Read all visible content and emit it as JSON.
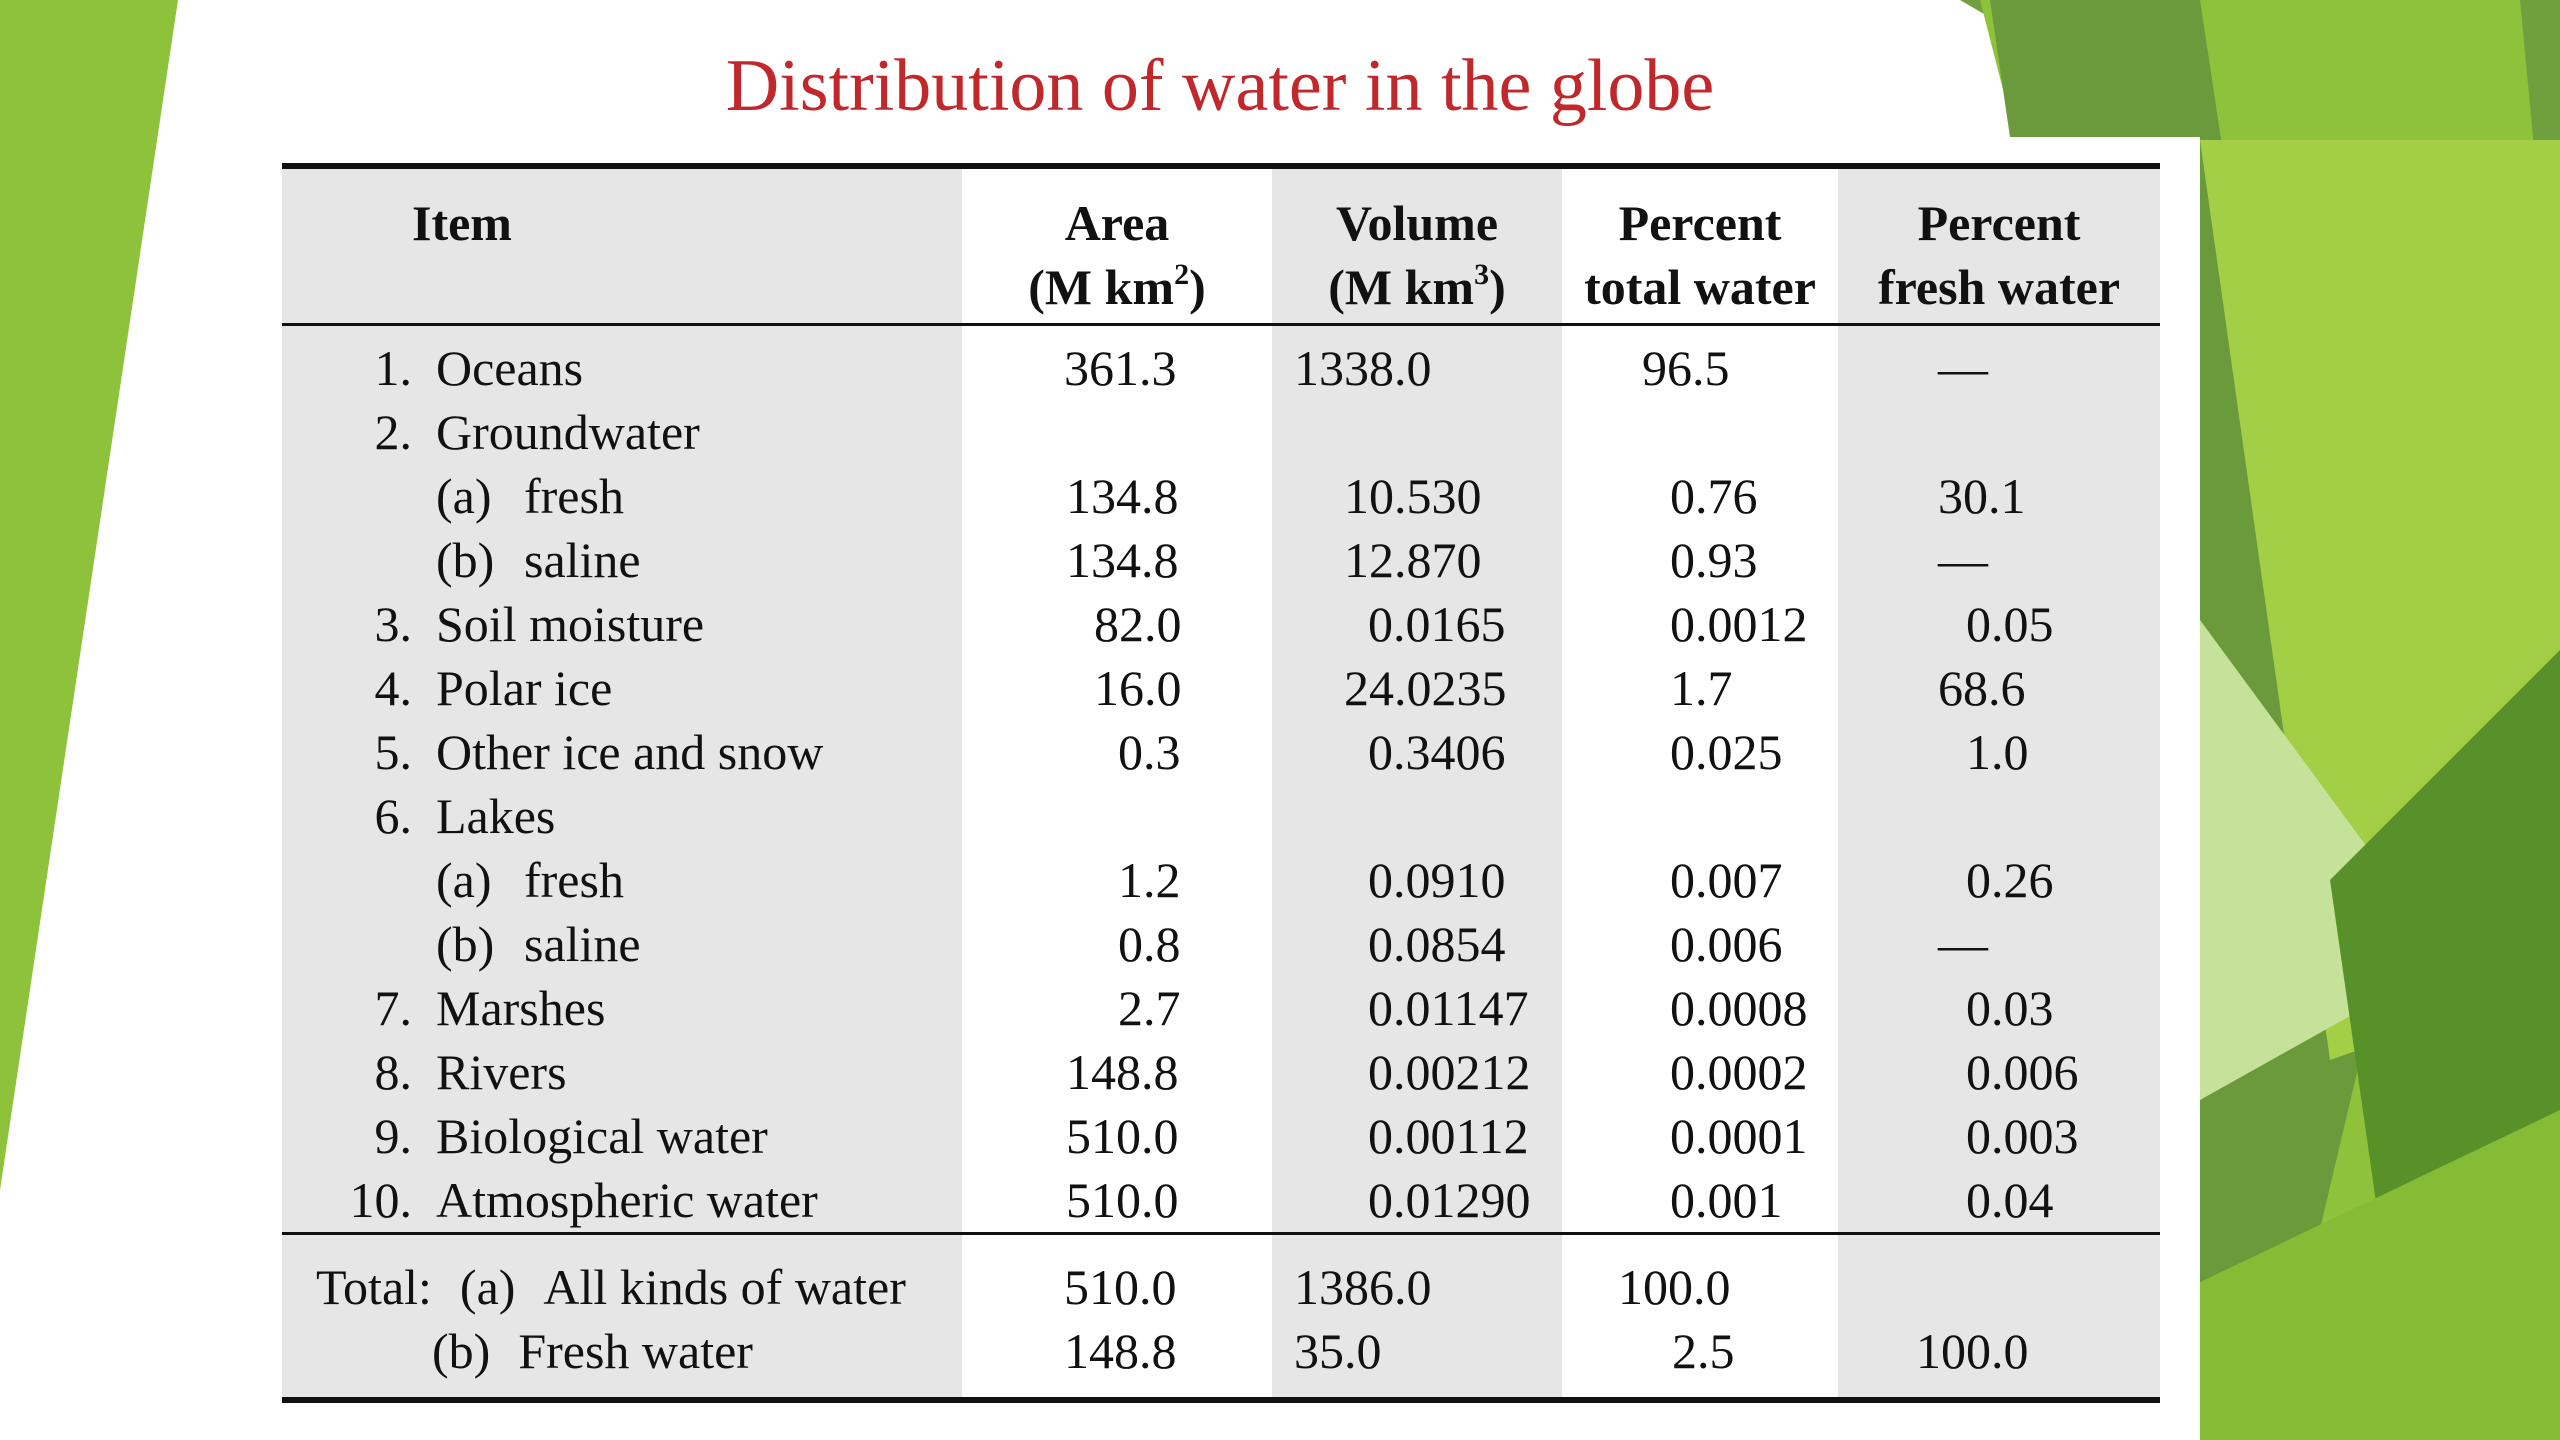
{
  "slide": {
    "title": "Distribution of water in the globe",
    "title_color": "#c0282b",
    "accent_colors": [
      "#7fb02c",
      "#a4cf3c",
      "#5f9e2f",
      "#c9e59a",
      "#4e8d22"
    ]
  },
  "table": {
    "headers": {
      "item": "Item",
      "area_line1": "Area",
      "area_line2": "(M km",
      "area_sup": "2",
      "area_close": ")",
      "volume_line1": "Volume",
      "volume_line2": "(M km",
      "volume_sup": "3",
      "volume_close": ")",
      "pct_total_line1": "Percent",
      "pct_total_line2": "total water",
      "pct_fresh_line1": "Percent",
      "pct_fresh_line2": "fresh water"
    },
    "rows": [
      {
        "num": "1.",
        "label": "Oceans",
        "area": "361.3",
        "volume": "1338.0",
        "pct_total": "96.5",
        "pct_fresh": "—"
      },
      {
        "num": "2.",
        "label": "Groundwater",
        "area": "",
        "volume": "",
        "pct_total": "",
        "pct_fresh": ""
      },
      {
        "sub": "(a)",
        "label": "fresh",
        "area": "134.8",
        "volume": "10.530",
        "pct_total": "0.76",
        "pct_fresh": "30.1"
      },
      {
        "sub": "(b)",
        "label": "saline",
        "area": "134.8",
        "volume": "12.870",
        "pct_total": "0.93",
        "pct_fresh": "—"
      },
      {
        "num": "3.",
        "label": "Soil moisture",
        "area": "82.0",
        "volume": "0.0165",
        "pct_total": "0.0012",
        "pct_fresh": "0.05"
      },
      {
        "num": "4.",
        "label": "Polar ice",
        "area": "16.0",
        "volume": "24.0235",
        "pct_total": "1.7",
        "pct_fresh": "68.6"
      },
      {
        "num": "5.",
        "label": "Other ice and snow",
        "area": "0.3",
        "volume": "0.3406",
        "pct_total": "0.025",
        "pct_fresh": "1.0"
      },
      {
        "num": "6.",
        "label": "Lakes",
        "area": "",
        "volume": "",
        "pct_total": "",
        "pct_fresh": ""
      },
      {
        "sub": "(a)",
        "label": "fresh",
        "area": "1.2",
        "volume": "0.0910",
        "pct_total": "0.007",
        "pct_fresh": "0.26"
      },
      {
        "sub": "(b)",
        "label": "saline",
        "area": "0.8",
        "volume": "0.0854",
        "pct_total": "0.006",
        "pct_fresh": "—"
      },
      {
        "num": "7.",
        "label": "Marshes",
        "area": "2.7",
        "volume": "0.01147",
        "pct_total": "0.0008",
        "pct_fresh": "0.03"
      },
      {
        "num": "8.",
        "label": "Rivers",
        "area": "148.8",
        "volume": "0.00212",
        "pct_total": "0.0002",
        "pct_fresh": "0.006"
      },
      {
        "num": "9.",
        "label": "Biological water",
        "area": "510.0",
        "volume": "0.00112",
        "pct_total": "0.0001",
        "pct_fresh": "0.003"
      },
      {
        "num": "10.",
        "label": "Atmospheric water",
        "area": "510.0",
        "volume": "0.01290",
        "pct_total": "0.001",
        "pct_fresh": "0.04"
      }
    ],
    "totals": {
      "prefix": "Total:",
      "a_tag": "(a)",
      "a_label": "All kinds of water",
      "a_area": "510.0",
      "a_volume": "1386.0",
      "a_pct_total": "100.0",
      "a_pct_fresh": "",
      "b_tag": "(b)",
      "b_label": "Fresh water",
      "b_area": "148.8",
      "b_volume": "35.0",
      "b_pct_total": "2.5",
      "b_pct_fresh": "100.0"
    }
  }
}
